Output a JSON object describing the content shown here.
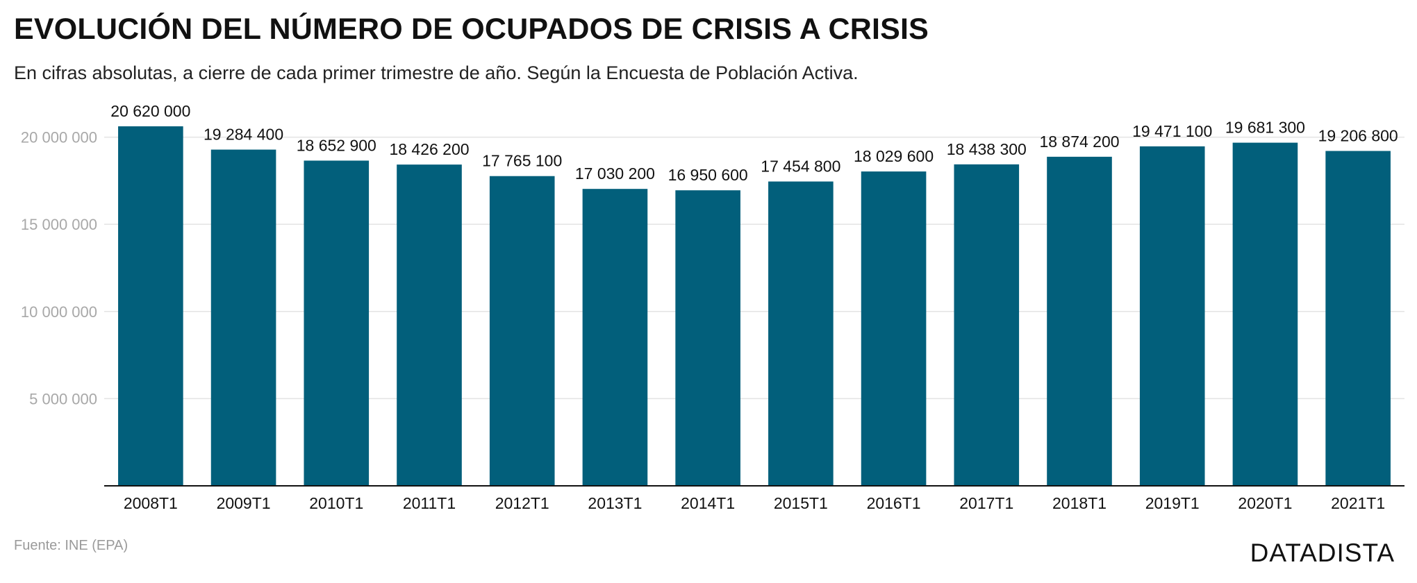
{
  "header": {
    "title": "EVOLUCIÓN DEL NÚMERO DE OCUPADOS DE CRISIS A CRISIS",
    "subtitle": "En cifras absolutas, a cierre de cada primer trimestre de año. Según la Encuesta de Población Activa."
  },
  "footer": {
    "source": "Fuente: INE (EPA)",
    "brand": "DATADISTA"
  },
  "colors": {
    "bar": "#025f7b",
    "grid": "#e3e3e3",
    "axis": "#111111"
  },
  "chart_data": {
    "type": "bar",
    "categories": [
      "2008T1",
      "2009T1",
      "2010T1",
      "2011T1",
      "2012T1",
      "2013T1",
      "2014T1",
      "2015T1",
      "2016T1",
      "2017T1",
      "2018T1",
      "2019T1",
      "2020T1",
      "2021T1"
    ],
    "values": [
      20620000,
      19284400,
      18652900,
      18426200,
      17765100,
      17030200,
      16950600,
      17454800,
      18029600,
      18438300,
      18874200,
      19471100,
      19681300,
      19206800
    ],
    "value_labels": [
      "20 620 000",
      "19 284 400",
      "18 652 900",
      "18 426 200",
      "17 765 100",
      "17 030 200",
      "16 950 600",
      "17 454 800",
      "18 029 600",
      "18 438 300",
      "18 874 200",
      "19 471 100",
      "19 681 300",
      "19 206 800"
    ],
    "yticks": [
      5000000,
      10000000,
      15000000,
      20000000
    ],
    "ytick_labels": [
      "5 000 000",
      "10 000 000",
      "15 000 000",
      "20 000 000"
    ],
    "ylim": [
      0,
      20620000
    ],
    "grid": true,
    "legend": "none",
    "xlabel": "",
    "ylabel": ""
  }
}
